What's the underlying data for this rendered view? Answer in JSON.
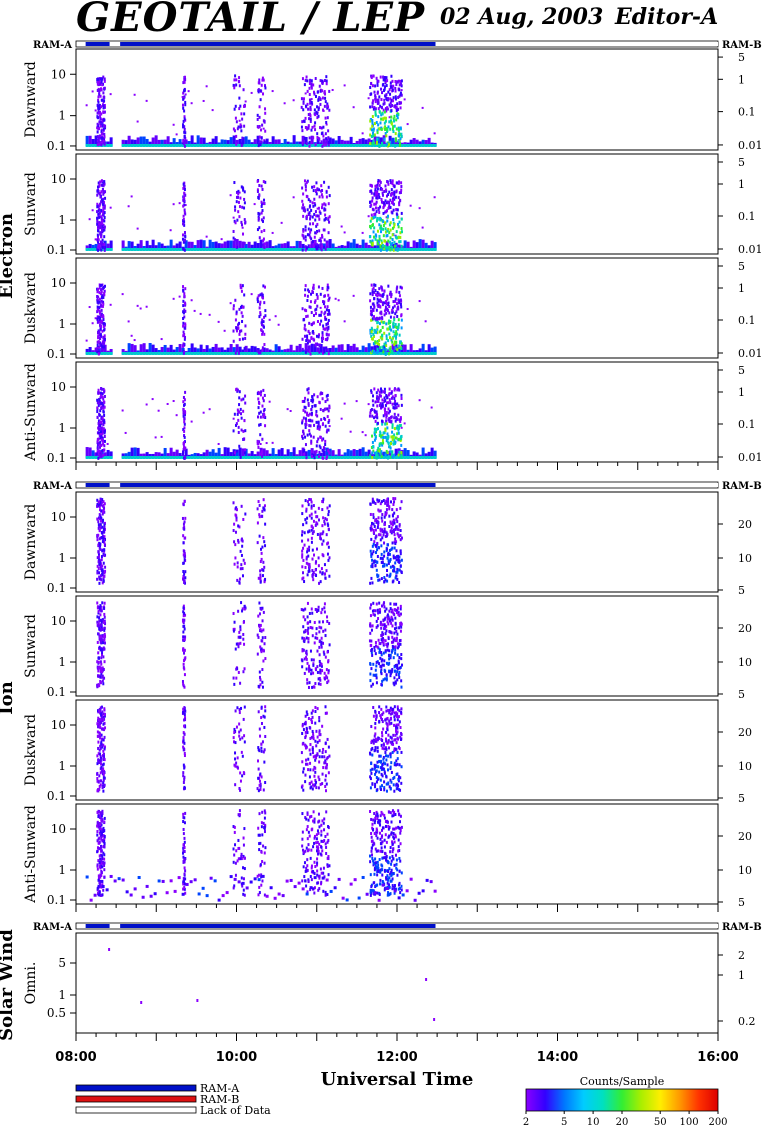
{
  "header": {
    "title": "GEOTAIL / LEP",
    "date": "02 Aug, 2003",
    "editor": "Editor-A"
  },
  "ram_labels": {
    "left": "RAM-A",
    "right": "RAM-B"
  },
  "colors": {
    "ram_a": "#0010c8",
    "ram_b": "#dd1111",
    "lack_of_data": "#ffffff"
  },
  "sections": {
    "electron": "Electron",
    "ion": "Ion",
    "solar_wind": "Solar Wind"
  },
  "legend": {
    "ram_a": "RAM-A",
    "ram_b": "RAM-B",
    "lack": "Lack of Data",
    "colorbar_title": "Counts/Sample",
    "colorbar_ticks": [
      "2",
      "5",
      "10",
      "20",
      "50",
      "100",
      "200"
    ]
  },
  "chart_data": {
    "type": "heatmap",
    "xlabel": "Universal Time",
    "x_ticks": [
      "08:00",
      "10:00",
      "12:00",
      "14:00",
      "16:00"
    ],
    "xlim_hours": [
      8,
      16
    ],
    "ram_status_segments": [
      {
        "start": 8.12,
        "end": 8.42,
        "state": "RAM-A"
      },
      {
        "start": 8.42,
        "end": 8.55,
        "state": "Lack of Data"
      },
      {
        "start": 8.55,
        "end": 12.48,
        "state": "RAM-A"
      },
      {
        "start": 12.48,
        "end": 16.0,
        "state": "Lack of Data"
      }
    ],
    "panels": [
      {
        "group": "electron",
        "label": "Dawnward",
        "left_ticks": [
          "10",
          "1",
          "0.1"
        ],
        "right_ticks": [
          "5",
          "1",
          "0.1",
          "0.01"
        ]
      },
      {
        "group": "electron",
        "label": "Sunward",
        "left_ticks": [
          "10",
          "1",
          "0.1"
        ],
        "right_ticks": [
          "5",
          "1",
          "0.1",
          "0.01"
        ]
      },
      {
        "group": "electron",
        "label": "Duskward",
        "left_ticks": [
          "10",
          "1",
          "0.1"
        ],
        "right_ticks": [
          "5",
          "1",
          "0.1",
          "0.01"
        ]
      },
      {
        "group": "electron",
        "label": "Anti-Sunward",
        "left_ticks": [
          "10",
          "1",
          "0.1"
        ],
        "right_ticks": [
          "5",
          "1",
          "0.1",
          "0.01"
        ]
      },
      {
        "group": "ion",
        "label": "Dawnward",
        "left_ticks": [
          "10",
          "1",
          "0.1"
        ],
        "right_ticks": [
          "20",
          "10",
          "5"
        ]
      },
      {
        "group": "ion",
        "label": "Sunward",
        "left_ticks": [
          "10",
          "1",
          "0.1"
        ],
        "right_ticks": [
          "20",
          "10",
          "5"
        ]
      },
      {
        "group": "ion",
        "label": "Duskward",
        "left_ticks": [
          "10",
          "1",
          "0.1"
        ],
        "right_ticks": [
          "20",
          "10",
          "5"
        ]
      },
      {
        "group": "ion",
        "label": "Anti-Sunward",
        "left_ticks": [
          "10",
          "1",
          "0.1"
        ],
        "right_ticks": [
          "20",
          "10",
          "5"
        ]
      },
      {
        "group": "solar_wind",
        "label": "Omni.",
        "left_ticks": [
          "5",
          "1",
          "0.5"
        ],
        "right_ticks": [
          "2",
          "1",
          "0.2"
        ]
      }
    ],
    "activity_intervals_hours": [
      [
        8.25,
        8.35,
        "burst"
      ],
      [
        9.32,
        9.35,
        "spike"
      ],
      [
        9.95,
        10.1,
        "patch"
      ],
      [
        10.25,
        10.35,
        "patch"
      ],
      [
        10.8,
        11.15,
        "burst"
      ],
      [
        11.65,
        12.05,
        "main"
      ]
    ],
    "colorbar": {
      "label": "Counts/Sample",
      "ticks": [
        2,
        5,
        10,
        20,
        50,
        100,
        200
      ],
      "scale": "log"
    }
  }
}
